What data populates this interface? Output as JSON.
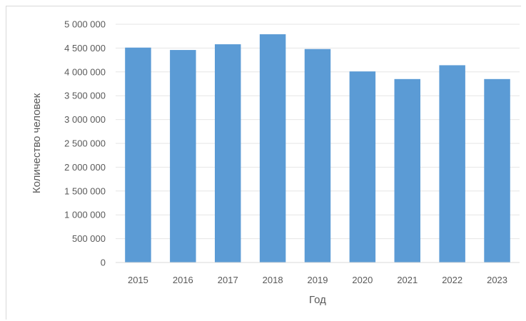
{
  "chart_data": {
    "type": "bar",
    "title": "",
    "xlabel": "Год",
    "ylabel": "Количество человек",
    "categories": [
      "2015",
      "2016",
      "2017",
      "2018",
      "2019",
      "2020",
      "2021",
      "2022",
      "2023"
    ],
    "values": [
      4510000,
      4460000,
      4580000,
      4790000,
      4480000,
      4010000,
      3850000,
      4140000,
      3850000
    ],
    "ylim": [
      0,
      5000000
    ],
    "yticks": [
      0,
      500000,
      1000000,
      1500000,
      2000000,
      2500000,
      3000000,
      3500000,
      4000000,
      4500000,
      5000000
    ],
    "ytick_labels": [
      "0",
      "500 000",
      "1 000 000",
      "1 500 000",
      "2 000 000",
      "2 500 000",
      "3 000 000",
      "3 500 000",
      "4 000 000",
      "4 500 000",
      "5 000 000"
    ],
    "grid": true,
    "legend": "none",
    "colors": {
      "bar": "#5b9bd5",
      "grid": "#e6e6e6",
      "axis": "#d9d9d9",
      "text": "#595959"
    }
  }
}
